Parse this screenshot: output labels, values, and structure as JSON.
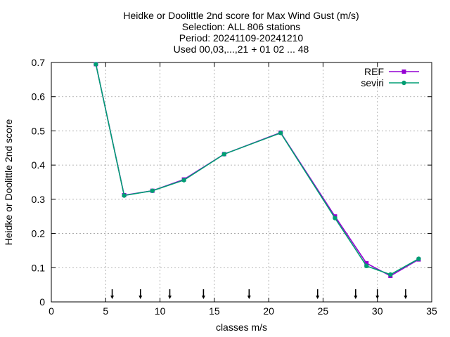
{
  "chart_data": {
    "type": "line",
    "title_lines": [
      "Heidke or Doolittle 2nd score  for Max Wind Gust (m/s)",
      "Selection: ALL    806 stations",
      "Period: 20241109-20241210",
      "Used 00,03,...,21 + 01 02 ... 48"
    ],
    "xlabel": "classes m/s",
    "ylabel": "Heidke or Doolittle 2nd score",
    "xlim": [
      0,
      35
    ],
    "ylim": [
      0,
      0.7
    ],
    "xticks": [
      0,
      5,
      10,
      15,
      20,
      25,
      30,
      35
    ],
    "yticks": [
      0,
      0.1,
      0.2,
      0.3,
      0.4,
      0.5,
      0.6,
      0.7
    ],
    "grid": true,
    "legend_position": "top-right",
    "series": [
      {
        "name": "REF",
        "color": "#9400d3",
        "x": [
          4.1,
          6.7,
          9.3,
          12.2,
          15.9,
          21.1,
          26.1,
          29.0,
          31.2,
          33.8
        ],
        "y": [
          0.695,
          0.312,
          0.325,
          0.358,
          0.432,
          0.495,
          0.25,
          0.113,
          0.076,
          0.124
        ]
      },
      {
        "name": "seviri",
        "color": "#009e73",
        "x": [
          4.1,
          6.7,
          9.3,
          12.2,
          15.9,
          21.1,
          26.1,
          29.0,
          31.2,
          33.8
        ],
        "y": [
          0.695,
          0.311,
          0.325,
          0.356,
          0.432,
          0.494,
          0.245,
          0.105,
          0.08,
          0.126
        ]
      }
    ],
    "arrow_markers_x": [
      5.6,
      8.2,
      10.9,
      14.0,
      18.2,
      24.5,
      28.0,
      30.0,
      32.6
    ]
  }
}
